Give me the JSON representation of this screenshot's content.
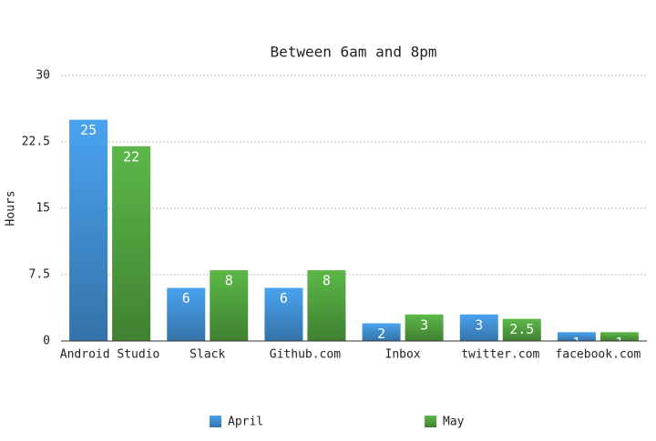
{
  "chart_data": {
    "type": "bar",
    "title": "Between 6am and 8pm",
    "y_label": "Hours",
    "categories": [
      "Android Studio",
      "Slack",
      "Github.com",
      "Inbox",
      "twitter.com",
      "facebook.com"
    ],
    "series": [
      {
        "name": "April",
        "color": "#4aa3f0",
        "values": [
          25,
          6,
          6,
          2,
          3,
          1
        ]
      },
      {
        "name": "May",
        "color": "#5cb848",
        "values": [
          22,
          8,
          8,
          3,
          2.5,
          1
        ]
      }
    ],
    "ylim": [
      0,
      30
    ],
    "yticks": [
      0,
      7.5,
      15,
      22.5,
      30
    ],
    "grid": true,
    "legend": "bottom"
  }
}
